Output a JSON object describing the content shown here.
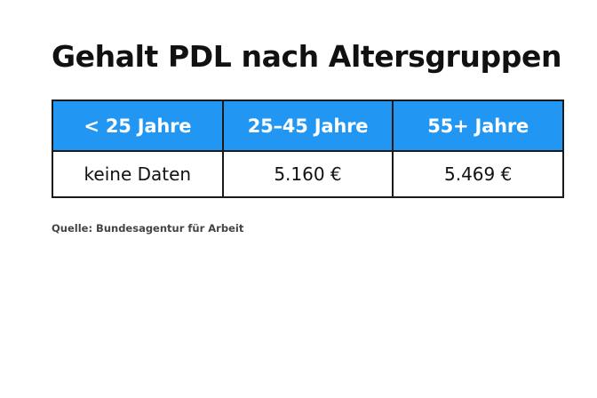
{
  "title": "Gehalt PDL nach Altersgruppen",
  "table": {
    "columns": [
      "< 25 Jahre",
      "25–45 Jahre",
      "55+ Jahre"
    ],
    "rows": [
      [
        "keine Daten",
        "5.160 €",
        "5.469 €"
      ]
    ]
  },
  "source": "Quelle: Bundesagentur für Arbeit",
  "colors": {
    "header_background": "#2196f3",
    "header_text": "#ffffff",
    "border": "#1a1a1a"
  }
}
